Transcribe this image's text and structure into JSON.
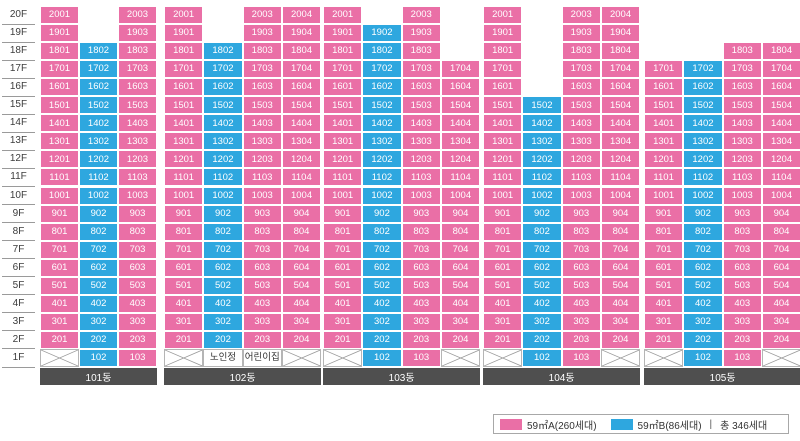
{
  "floors": [
    "20F",
    "19F",
    "18F",
    "17F",
    "16F",
    "15F",
    "14F",
    "13F",
    "12F",
    "11F",
    "10F",
    "9F",
    "8F",
    "7F",
    "6F",
    "5F",
    "4F",
    "3F",
    "2F",
    "1F"
  ],
  "colors": {
    "typeA": "#ea6fa6",
    "typeB": "#2ea7df",
    "building_bar": "#4f4f4f"
  },
  "buildings": [
    {
      "name": "101동",
      "columns": [
        {
          "line": "01",
          "type": "A",
          "top": 20,
          "first": "empty"
        },
        {
          "line": "02",
          "type": "B",
          "top": 18,
          "first": "unit"
        },
        {
          "line": "03",
          "type": "A",
          "top": 20,
          "first": "unit"
        }
      ]
    },
    {
      "name": "102동",
      "columns": [
        {
          "line": "01",
          "type": "A",
          "top": 20,
          "first": "empty"
        },
        {
          "line": "02",
          "type": "B",
          "top": 18,
          "first": "노인정"
        },
        {
          "line": "03",
          "type": "A",
          "top": 20,
          "first": "어린이집"
        },
        {
          "line": "04",
          "type": "A",
          "top": 20,
          "first": "empty"
        }
      ]
    },
    {
      "name": "103동",
      "columns": [
        {
          "line": "01",
          "type": "A",
          "top": 20,
          "first": "empty"
        },
        {
          "line": "02",
          "type": "B",
          "top": 19,
          "first": "unit"
        },
        {
          "line": "03",
          "type": "A",
          "top": 20,
          "first": "unit"
        },
        {
          "line": "04",
          "type": "A",
          "top": 17,
          "first": "empty"
        }
      ]
    },
    {
      "name": "104동",
      "columns": [
        {
          "line": "01",
          "type": "A",
          "top": 20,
          "first": "empty"
        },
        {
          "line": "02",
          "type": "B",
          "top": 15,
          "first": "unit"
        },
        {
          "line": "03",
          "type": "A",
          "top": 20,
          "first": "unit"
        },
        {
          "line": "04",
          "type": "A",
          "top": 20,
          "first": "empty"
        }
      ]
    },
    {
      "name": "105동",
      "columns": [
        {
          "line": "01",
          "type": "A",
          "top": 17,
          "first": "empty"
        },
        {
          "line": "02",
          "type": "B",
          "top": 17,
          "first": "unit"
        },
        {
          "line": "03",
          "type": "A",
          "top": 18,
          "first": "unit"
        },
        {
          "line": "04",
          "type": "A",
          "top": 18,
          "first": "empty"
        }
      ]
    }
  ],
  "legend": {
    "typeA_label": "59㎡A(260세대)",
    "typeB_label": "59㎡B(86세대)",
    "separator": "|",
    "total_label": "총 346세대"
  }
}
